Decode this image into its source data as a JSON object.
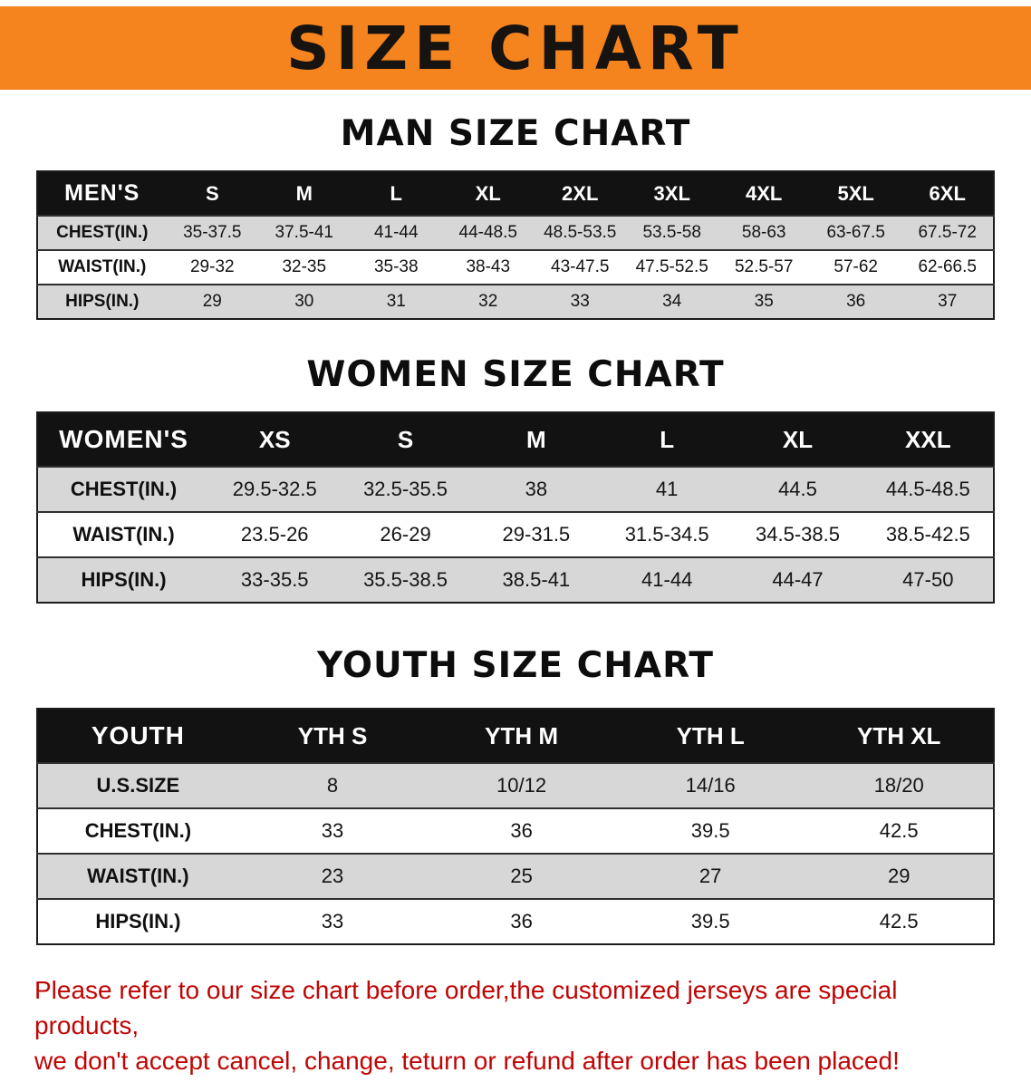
{
  "banner": {
    "title": "SIZE CHART",
    "bg_color": "#f5831e",
    "text_color": "#161310"
  },
  "sections": {
    "men": {
      "heading": "MAN SIZE CHART",
      "table": {
        "header": [
          "MEN'S",
          "S",
          "M",
          "L",
          "XL",
          "2XL",
          "3XL",
          "4XL",
          "5XL",
          "6XL"
        ],
        "rows": [
          [
            "CHEST(IN.)",
            "35-37.5",
            "37.5-41",
            "41-44",
            "44-48.5",
            "48.5-53.5",
            "53.5-58",
            "58-63",
            "63-67.5",
            "67.5-72"
          ],
          [
            "WAIST(IN.)",
            "29-32",
            "32-35",
            "35-38",
            "38-43",
            "43-47.5",
            "47.5-52.5",
            "52.5-57",
            "57-62",
            "62-66.5"
          ],
          [
            "HIPS(IN.)",
            "29",
            "30",
            "31",
            "32",
            "33",
            "34",
            "35",
            "36",
            "37"
          ]
        ]
      }
    },
    "women": {
      "heading": "WOMEN SIZE CHART",
      "table": {
        "header": [
          "WOMEN'S",
          "XS",
          "S",
          "M",
          "L",
          "XL",
          "XXL"
        ],
        "rows": [
          [
            "CHEST(IN.)",
            "29.5-32.5",
            "32.5-35.5",
            "38",
            "41",
            "44.5",
            "44.5-48.5"
          ],
          [
            "WAIST(IN.)",
            "23.5-26",
            "26-29",
            "29-31.5",
            "31.5-34.5",
            "34.5-38.5",
            "38.5-42.5"
          ],
          [
            "HIPS(IN.)",
            "33-35.5",
            "35.5-38.5",
            "38.5-41",
            "41-44",
            "44-47",
            "47-50"
          ]
        ]
      }
    },
    "youth": {
      "heading": "YOUTH SIZE CHART",
      "table": {
        "header": [
          "YOUTH",
          "YTH S",
          "YTH M",
          "YTH L",
          "YTH XL"
        ],
        "rows": [
          [
            "U.S.SIZE",
            "8",
            "10/12",
            "14/16",
            "18/20"
          ],
          [
            "CHEST(IN.)",
            "33",
            "36",
            "39.5",
            "42.5"
          ],
          [
            "WAIST(IN.)",
            "23",
            "25",
            "27",
            "29"
          ],
          [
            "HIPS(IN.)",
            "33",
            "36",
            "39.5",
            "42.5"
          ]
        ]
      }
    }
  },
  "disclaimer": {
    "line1": "Please refer to our size chart before order,the customized jerseys are special products,",
    "line2": "we don't accept cancel, change, teturn or refund after order has been placed!",
    "color": "#c00505"
  }
}
